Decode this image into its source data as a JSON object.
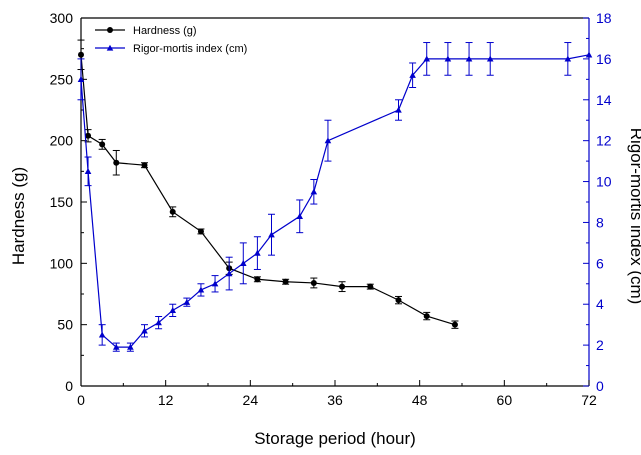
{
  "chart_data": {
    "type": "line",
    "title": "",
    "xlabel": "Storage period (hour)",
    "ylabel_left": "Hardness (g)",
    "ylabel_right": "Rigor-mortis index (cm)",
    "xlim": [
      0,
      72
    ],
    "x_ticks": [
      0,
      12,
      24,
      36,
      48,
      60,
      72
    ],
    "x_tick_labels": [
      "0",
      "12",
      "24",
      "36",
      "48",
      "60",
      "72"
    ],
    "ylim_left": [
      0,
      300
    ],
    "y_ticks_left": [
      0,
      50,
      100,
      150,
      200,
      250,
      300
    ],
    "y_tick_labels_left": [
      "0",
      "50",
      "100",
      "150",
      "200",
      "250",
      "300"
    ],
    "ylim_right": [
      0,
      18
    ],
    "y_ticks_right": [
      0,
      2,
      4,
      6,
      8,
      10,
      12,
      14,
      16,
      18
    ],
    "y_tick_labels_right": [
      "0",
      "2",
      "4",
      "6",
      "8",
      "10",
      "12",
      "14",
      "16",
      "18"
    ],
    "grid": false,
    "legend_position": "top-left",
    "series": [
      {
        "name": "Hardness (g)",
        "axis": "left",
        "color": "#000000",
        "marker": "circle",
        "x": [
          0,
          1,
          3,
          5,
          9,
          13,
          17,
          21,
          25,
          29,
          33,
          37,
          41,
          45,
          49,
          53
        ],
        "y": [
          270,
          204,
          197,
          182,
          180,
          142,
          126,
          96,
          87,
          85,
          84,
          81,
          81,
          70,
          57,
          50
        ],
        "err": [
          12,
          5,
          4,
          10,
          2,
          4,
          2,
          5,
          2,
          2,
          4,
          4,
          2,
          3,
          3,
          3
        ]
      },
      {
        "name": "Rigor-mortis index (cm)",
        "axis": "right",
        "color": "#0000cc",
        "marker": "triangle",
        "x": [
          0,
          1,
          3,
          5,
          7,
          9,
          11,
          13,
          15,
          17,
          19,
          21,
          23,
          25,
          27,
          31,
          33,
          35,
          45,
          47,
          49,
          52,
          55,
          58,
          69,
          72
        ],
        "y": [
          15,
          10.5,
          2.5,
          1.9,
          1.9,
          2.7,
          3.1,
          3.7,
          4.1,
          4.7,
          5,
          5.5,
          6,
          6.5,
          7.4,
          8.3,
          9.5,
          12,
          13.5,
          15.2,
          16,
          16,
          16,
          16,
          16,
          16.2
        ],
        "err": [
          1,
          0.7,
          0.5,
          0.2,
          0.2,
          0.3,
          0.3,
          0.3,
          0.2,
          0.3,
          0.4,
          0.8,
          1,
          0.8,
          1,
          0.8,
          0.6,
          1,
          0.5,
          0.6,
          0.8,
          0.8,
          0.8,
          0.8,
          0.8,
          0
        ]
      }
    ]
  }
}
